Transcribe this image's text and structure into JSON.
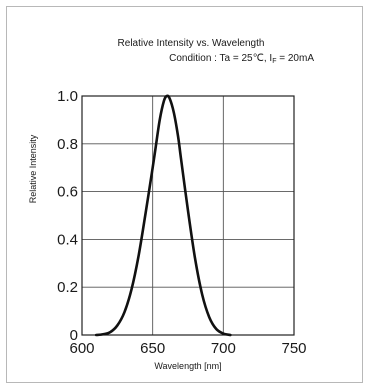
{
  "chart_data": {
    "type": "line",
    "title": "Relative Intensity vs. Wavelength",
    "subtitle": "Condition : Ta = 25℃, I",
    "subtitle_subscript": "F",
    "subtitle_tail": " = 20mA",
    "xlabel": "Wavelength [nm]",
    "ylabel": "Relative Intensity",
    "xlim": [
      600,
      750
    ],
    "ylim": [
      0,
      1.0
    ],
    "x_ticks": [
      "600",
      "650",
      "700",
      "750"
    ],
    "y_ticks": [
      "0",
      "0.2",
      "0.4",
      "0.6",
      "0.8",
      "1.0"
    ],
    "grid": true,
    "series": [
      {
        "x": [
          610,
          615,
          620,
          625,
          630,
          635,
          640,
          645,
          650,
          652,
          655,
          658,
          660,
          662,
          665,
          668,
          670,
          675,
          680,
          685,
          690,
          695,
          700,
          705
        ],
        "y": [
          0.0,
          0.003,
          0.012,
          0.04,
          0.095,
          0.19,
          0.33,
          0.51,
          0.7,
          0.78,
          0.9,
          0.98,
          1.0,
          0.99,
          0.93,
          0.83,
          0.74,
          0.52,
          0.32,
          0.17,
          0.075,
          0.025,
          0.006,
          0.0
        ]
      }
    ],
    "line_color": "#111111",
    "grid_color": "#555555"
  }
}
